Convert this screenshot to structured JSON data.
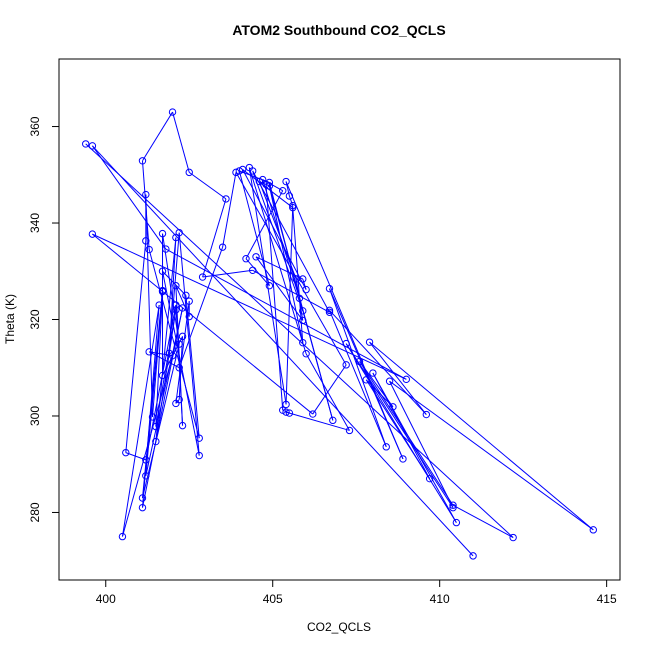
{
  "chart_data": {
    "type": "line",
    "title": "ATOM2 Southbound CO2_QCLS",
    "xlabel": "CO2_QCLS",
    "ylabel": "Theta (K)",
    "xlim": [
      398.6,
      415.4
    ],
    "ylim": [
      266.0,
      374.0
    ],
    "xticks": [
      400,
      405,
      410,
      415
    ],
    "yticks": [
      280,
      300,
      320,
      340,
      360
    ],
    "grid": false,
    "markers": "open-circle",
    "line_color": "#0000ff",
    "series": [
      {
        "points": [
          [
            399.4,
            356.4
          ],
          [
            412.2,
            274.8
          ],
          [
            410.4,
            281.5
          ],
          [
            407.6,
            311.3
          ],
          [
            408.6,
            301.9
          ],
          [
            407.8,
            307.5
          ],
          [
            409.7,
            287.0
          ],
          [
            408.0,
            308.9
          ],
          [
            410.5,
            277.9
          ],
          [
            407.2,
            315.0
          ],
          [
            410.4,
            281.0
          ],
          [
            408.5,
            307.2
          ],
          [
            414.6,
            276.4
          ],
          [
            407.9,
            315.3
          ],
          [
            409.6,
            300.3
          ],
          [
            406.7,
            321.9
          ],
          [
            408.4,
            293.6
          ],
          [
            406.7,
            326.4
          ],
          [
            408.9,
            291.1
          ],
          [
            405.4,
            348.6
          ],
          [
            405.5,
            345.6
          ],
          [
            405.6,
            343.6
          ],
          [
            405.4,
            302.4
          ],
          [
            404.3,
            351.5
          ],
          [
            406.0,
            312.9
          ],
          [
            407.3,
            297.0
          ],
          [
            405.4,
            300.8
          ],
          [
            405.5,
            300.6
          ],
          [
            405.3,
            301.2
          ],
          [
            404.8,
            348.0
          ],
          [
            404.6,
            348.6
          ],
          [
            405.7,
            328.4
          ],
          [
            405.9,
            319.8
          ],
          [
            404.5,
            333.0
          ],
          [
            405.9,
            328.4
          ],
          [
            406.0,
            326.2
          ],
          [
            404.1,
            351.1
          ],
          [
            405.6,
            343.2
          ],
          [
            405.9,
            315.2
          ],
          [
            404.9,
            347.7
          ],
          [
            406.8,
            299.1
          ],
          [
            405.8,
            324.4
          ],
          [
            404.7,
            349.0
          ],
          [
            405.3,
            346.7
          ],
          [
            404.2,
            332.6
          ],
          [
            404.9,
            327.0
          ],
          [
            404.0,
            350.8
          ],
          [
            404.9,
            348.4
          ],
          [
            405.9,
            321.8
          ],
          [
            404.4,
            350.8
          ],
          [
            406.7,
            321.5
          ],
          [
            404.4,
            330.2
          ],
          [
            402.9,
            328.8
          ],
          [
            403.6,
            345.0
          ],
          [
            402.5,
            350.5
          ],
          [
            402.0,
            363.0
          ],
          [
            401.1,
            352.9
          ],
          [
            401.3,
            334.5
          ],
          [
            402.8,
            295.4
          ],
          [
            402.4,
            325.0
          ],
          [
            401.7,
            330.0
          ],
          [
            402.8,
            291.8
          ],
          [
            402.2,
            338.0
          ],
          [
            401.9,
            313.0
          ],
          [
            402.1,
            337.0
          ],
          [
            401.5,
            294.7
          ],
          [
            402.1,
            322.0
          ],
          [
            401.5,
            297.8
          ],
          [
            401.7,
            325.8
          ],
          [
            401.4,
            299.8
          ],
          [
            401.2,
            345.9
          ],
          [
            401.2,
            336.3
          ],
          [
            400.6,
            292.4
          ],
          [
            401.2,
            290.9
          ],
          [
            402.1,
            323.0
          ],
          [
            402.3,
            298.0
          ],
          [
            402.1,
            327.0
          ],
          [
            402.5,
            320.6
          ],
          [
            402.5,
            323.8
          ],
          [
            402.1,
            302.6
          ],
          [
            402.2,
            303.4
          ],
          [
            402.3,
            316.5
          ],
          [
            401.7,
            308.4
          ],
          [
            401.7,
            337.8
          ],
          [
            402.2,
            314.9
          ],
          [
            401.1,
            283.0
          ],
          [
            401.7,
            326.0
          ],
          [
            401.2,
            287.6
          ],
          [
            402.3,
            322.4
          ],
          [
            401.1,
            281.0
          ],
          [
            401.6,
            323.0
          ],
          [
            400.5,
            275.0
          ],
          [
            402.0,
            312.5
          ],
          [
            401.3,
            313.3
          ],
          [
            402.2,
            310.0
          ],
          [
            403.5,
            335.0
          ],
          [
            403.9,
            350.5
          ],
          [
            407.2,
            310.6
          ],
          [
            406.2,
            300.4
          ],
          [
            399.6,
            337.7
          ],
          [
            409.0,
            307.6
          ],
          [
            401.8,
            334.6
          ],
          [
            399.6,
            356.0
          ],
          [
            411.0,
            271.0
          ]
        ]
      }
    ]
  }
}
